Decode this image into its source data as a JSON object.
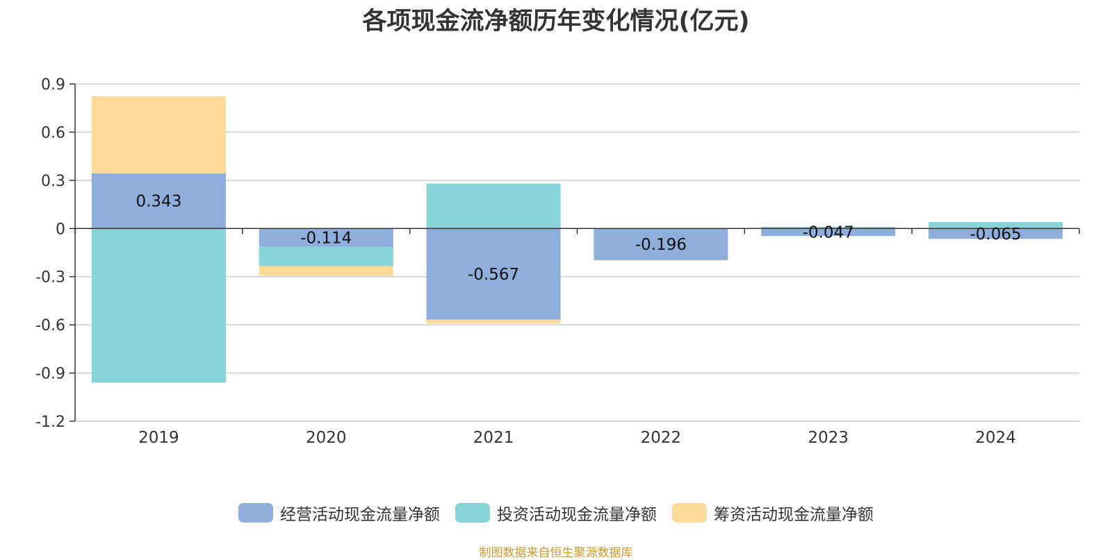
{
  "title": "各项现金流净额历年变化情况(亿元)",
  "source": "制图数据来自恒生聚源数据库",
  "colors": {
    "operating": "#8eaedb",
    "investing": "#88d5d8",
    "financing": "#fdd99a"
  },
  "chart_data": {
    "type": "bar",
    "stacked": true,
    "title": "各项现金流净额历年变化情况(亿元)",
    "categories": [
      "2019",
      "2020",
      "2021",
      "2022",
      "2023",
      "2024"
    ],
    "ylim": [
      -1.2,
      0.9
    ],
    "yticks": [
      "0.9",
      "0.6",
      "0.3",
      "0",
      "-0.3",
      "-0.6",
      "-0.9",
      "-1.2"
    ],
    "grid": true,
    "legend_position": "bottom",
    "series": [
      {
        "name": "经营活动现金流量净额",
        "values": [
          0.343,
          -0.114,
          -0.567,
          -0.196,
          -0.047,
          -0.065
        ],
        "labels": [
          "0.343",
          "-0.114",
          "-0.567",
          "-0.196",
          "-0.047",
          "-0.065"
        ]
      },
      {
        "name": "投资活动现金流量净额",
        "values": [
          -0.96,
          -0.12,
          0.28,
          0.0,
          0.01,
          0.04
        ]
      },
      {
        "name": "筹资活动现金流量净额",
        "values": [
          0.48,
          -0.06,
          -0.025,
          -0.005,
          0.0,
          0.0
        ]
      }
    ]
  }
}
